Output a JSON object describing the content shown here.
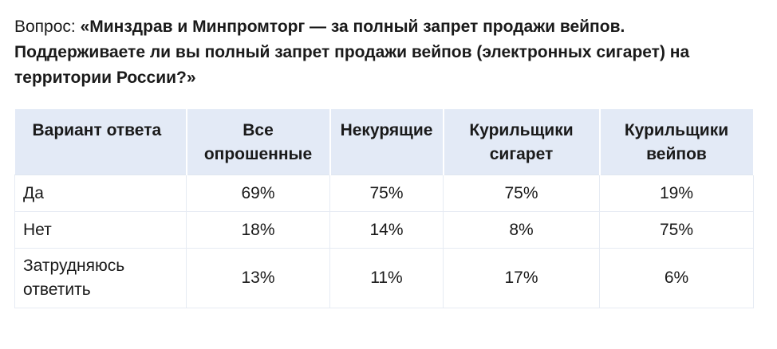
{
  "question": {
    "prefix": "Вопрос: ",
    "text": "«Минздрав и Минпромторг — за полный запрет продажи вейпов. Поддерживаете ли вы полный запрет продажи вейпов (электронных сигарет) на территории России?»"
  },
  "table": {
    "headers": [
      "Вариант ответа",
      "Все опрошенные",
      "Некурящие",
      "Курильщики сигарет",
      "Курильщики вейпов"
    ],
    "rows": [
      {
        "label": "Да",
        "values": [
          "69%",
          "75%",
          "75%",
          "19%"
        ]
      },
      {
        "label": "Нет",
        "values": [
          "18%",
          "14%",
          "8%",
          "75%"
        ]
      },
      {
        "label": "Затрудняюсь ответить",
        "values": [
          "13%",
          "11%",
          "17%",
          "6%"
        ]
      }
    ]
  }
}
